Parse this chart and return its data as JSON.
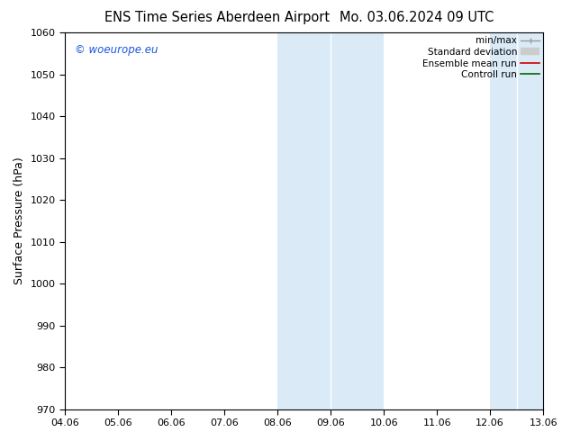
{
  "title_left": "ENS Time Series Aberdeen Airport",
  "title_right": "Mo. 03.06.2024 09 UTC",
  "ylabel": "Surface Pressure (hPa)",
  "ylim": [
    970,
    1060
  ],
  "yticks": [
    970,
    980,
    990,
    1000,
    1010,
    1020,
    1030,
    1040,
    1050,
    1060
  ],
  "xlabels": [
    "04.06",
    "05.06",
    "06.06",
    "07.06",
    "08.06",
    "09.06",
    "10.06",
    "11.06",
    "12.06",
    "13.06"
  ],
  "xvalues": [
    0,
    1,
    2,
    3,
    4,
    5,
    6,
    7,
    8,
    9
  ],
  "shaded_bands": [
    {
      "xmin": 4.0,
      "xmax": 5.0
    },
    {
      "xmin": 5.0,
      "xmax": 6.0
    },
    {
      "xmin": 8.0,
      "xmax": 8.5
    },
    {
      "xmin": 8.5,
      "xmax": 9.0
    }
  ],
  "shade_color": "#daeaf7",
  "shade_alpha": 1.0,
  "band_border_color": "#b8d4e8",
  "copyright_text": "© woeurope.eu",
  "copyright_color": "#1a56db",
  "legend_items": [
    {
      "label": "min/max",
      "type": "minmax",
      "color": "#999999",
      "linewidth": 1.0
    },
    {
      "label": "Standard deviation",
      "type": "stdev",
      "color": "#cccccc",
      "linewidth": 6
    },
    {
      "label": "Ensemble mean run",
      "type": "line",
      "color": "#cc0000",
      "linewidth": 1.2
    },
    {
      "label": "Controll run",
      "type": "line",
      "color": "#006600",
      "linewidth": 1.2
    }
  ],
  "bg_color": "#ffffff",
  "title_fontsize": 10.5,
  "tick_fontsize": 8,
  "ylabel_fontsize": 9,
  "copyright_fontsize": 8.5,
  "legend_fontsize": 7.5
}
